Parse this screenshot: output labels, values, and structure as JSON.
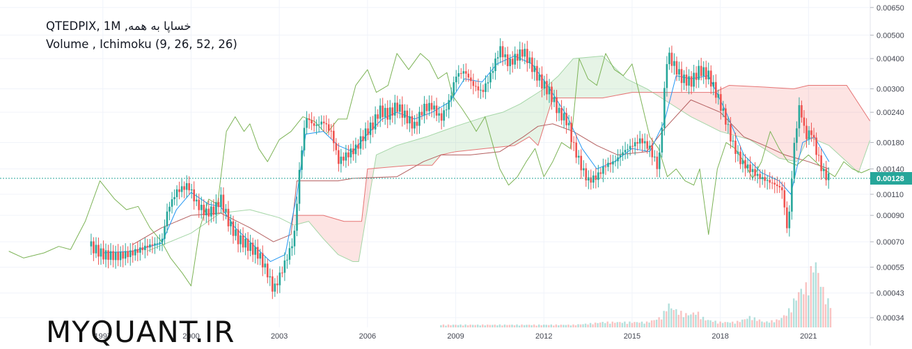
{
  "legend": {
    "title": "خساپا به همه, QTEDPIX, 1M",
    "indicators": "Volume , Ichimoku (9, 26, 52, 26)"
  },
  "watermark": "MYQUANT.IR",
  "colors": {
    "up": "#26a69a",
    "down": "#ef5350",
    "tenkan": "#2196f3",
    "kijun": "#b45f5f",
    "lagging": "#7cb356",
    "span_a": "#a5d6a7",
    "span_b": "#e57373",
    "cloud_bull": "rgba(76,175,80,0.14)",
    "cloud_bear": "rgba(244,67,54,0.14)",
    "price_line": "#26a69a",
    "grid": "#f0f3fa"
  },
  "chart_data": {
    "type": "candlestick",
    "y_scale": "log",
    "y_ticks": [
      "0.00650",
      "0.00500",
      "0.00400",
      "0.00300",
      "0.00240",
      "0.00180",
      "0.00140",
      "0.00128",
      "0.00110",
      "0.00090",
      "0.00070",
      "0.00055",
      "0.00043",
      "0.00034"
    ],
    "x_ticks": [
      "1997",
      "2000",
      "2003",
      "2006",
      "2009",
      "2012",
      "2015",
      "2018",
      "2021"
    ],
    "y_range": [
      0.00031,
      0.0068
    ],
    "x_range": [
      1993.5,
      2023.1
    ],
    "last_price": "0.00128",
    "close_series": [
      [
        1996.6,
        0.00067
      ],
      [
        1997.0,
        0.00062
      ],
      [
        1997.5,
        0.00061
      ],
      [
        1998.0,
        0.00063
      ],
      [
        1998.5,
        0.00067
      ],
      [
        1999.0,
        0.0007
      ],
      [
        1999.2,
        0.00095
      ],
      [
        1999.5,
        0.00113
      ],
      [
        1999.9,
        0.0012
      ],
      [
        2000.2,
        0.001
      ],
      [
        2000.5,
        0.00092
      ],
      [
        2000.8,
        0.00095
      ],
      [
        2001.0,
        0.00106
      ],
      [
        2001.3,
        0.00083
      ],
      [
        2001.6,
        0.00072
      ],
      [
        2001.9,
        0.00068
      ],
      [
        2002.3,
        0.00062
      ],
      [
        2002.6,
        0.00052
      ],
      [
        2002.8,
        0.00044
      ],
      [
        2003.0,
        0.0005
      ],
      [
        2003.3,
        0.00062
      ],
      [
        2003.5,
        0.00072
      ],
      [
        2003.7,
        0.00145
      ],
      [
        2003.9,
        0.0023
      ],
      [
        2004.2,
        0.0021
      ],
      [
        2004.5,
        0.0022
      ],
      [
        2004.8,
        0.00195
      ],
      [
        2005.0,
        0.0015
      ],
      [
        2005.3,
        0.0016
      ],
      [
        2005.6,
        0.0017
      ],
      [
        2005.9,
        0.00195
      ],
      [
        2006.2,
        0.00215
      ],
      [
        2006.4,
        0.00245
      ],
      [
        2006.7,
        0.00235
      ],
      [
        2007.0,
        0.00255
      ],
      [
        2007.3,
        0.0023
      ],
      [
        2007.6,
        0.0021
      ],
      [
        2007.9,
        0.0025
      ],
      [
        2008.2,
        0.00255
      ],
      [
        2008.5,
        0.00225
      ],
      [
        2008.8,
        0.0027
      ],
      [
        2009.0,
        0.0034
      ],
      [
        2009.3,
        0.00355
      ],
      [
        2009.6,
        0.0031
      ],
      [
        2009.9,
        0.0029
      ],
      [
        2010.2,
        0.00345
      ],
      [
        2010.5,
        0.0044
      ],
      [
        2010.8,
        0.0038
      ],
      [
        2011.0,
        0.004
      ],
      [
        2011.3,
        0.0043
      ],
      [
        2011.6,
        0.0037
      ],
      [
        2011.9,
        0.0032
      ],
      [
        2012.2,
        0.0029
      ],
      [
        2012.5,
        0.0024
      ],
      [
        2012.8,
        0.0022
      ],
      [
        2013.0,
        0.00175
      ],
      [
        2013.3,
        0.0014
      ],
      [
        2013.5,
        0.00125
      ],
      [
        2013.8,
        0.0013
      ],
      [
        2014.1,
        0.00145
      ],
      [
        2014.4,
        0.0015
      ],
      [
        2014.7,
        0.00165
      ],
      [
        2015.0,
        0.00175
      ],
      [
        2015.3,
        0.00185
      ],
      [
        2015.6,
        0.0017
      ],
      [
        2015.9,
        0.0014
      ],
      [
        2016.2,
        0.0042
      ],
      [
        2016.4,
        0.0038
      ],
      [
        2016.7,
        0.0033
      ],
      [
        2017.0,
        0.0032
      ],
      [
        2017.3,
        0.0036
      ],
      [
        2017.6,
        0.0034
      ],
      [
        2017.9,
        0.0028
      ],
      [
        2018.2,
        0.0022
      ],
      [
        2018.4,
        0.0018
      ],
      [
        2018.7,
        0.0015
      ],
      [
        2019.0,
        0.0014
      ],
      [
        2019.3,
        0.0013
      ],
      [
        2019.6,
        0.00125
      ],
      [
        2019.9,
        0.0012
      ],
      [
        2020.1,
        0.00115
      ],
      [
        2020.3,
        0.00075
      ],
      [
        2020.5,
        0.0017
      ],
      [
        2020.7,
        0.0026
      ],
      [
        2020.9,
        0.0019
      ],
      [
        2021.1,
        0.002
      ],
      [
        2021.3,
        0.0016
      ],
      [
        2021.5,
        0.00135
      ],
      [
        2021.7,
        0.00128
      ]
    ],
    "tenkan": [
      [
        1997.0,
        0.00063
      ],
      [
        1998.0,
        0.00064
      ],
      [
        1999.0,
        0.00069
      ],
      [
        1999.5,
        0.00095
      ],
      [
        2000.0,
        0.00112
      ],
      [
        2000.6,
        0.001
      ],
      [
        2001.0,
        0.00098
      ],
      [
        2001.5,
        0.0008
      ],
      [
        2002.0,
        0.0007
      ],
      [
        2002.7,
        0.00058
      ],
      [
        2003.2,
        0.00062
      ],
      [
        2003.6,
        0.0011
      ],
      [
        2003.9,
        0.00195
      ],
      [
        2004.5,
        0.002
      ],
      [
        2005.0,
        0.00175
      ],
      [
        2005.5,
        0.00165
      ],
      [
        2006.0,
        0.00195
      ],
      [
        2006.5,
        0.00225
      ],
      [
        2007.0,
        0.0024
      ],
      [
        2007.6,
        0.00225
      ],
      [
        2008.2,
        0.0024
      ],
      [
        2008.8,
        0.00265
      ],
      [
        2009.3,
        0.0033
      ],
      [
        2009.9,
        0.0032
      ],
      [
        2010.4,
        0.0038
      ],
      [
        2011.0,
        0.0041
      ],
      [
        2011.6,
        0.0038
      ],
      [
        2012.2,
        0.003
      ],
      [
        2012.8,
        0.0023
      ],
      [
        2013.3,
        0.0017
      ],
      [
        2013.8,
        0.0014
      ],
      [
        2014.4,
        0.0015
      ],
      [
        2015.0,
        0.0017
      ],
      [
        2015.6,
        0.00165
      ],
      [
        2016.1,
        0.0022
      ],
      [
        2016.5,
        0.0034
      ],
      [
        2017.0,
        0.0033
      ],
      [
        2017.6,
        0.0034
      ],
      [
        2018.2,
        0.0024
      ],
      [
        2018.8,
        0.0016
      ],
      [
        2019.4,
        0.00135
      ],
      [
        2020.0,
        0.00125
      ],
      [
        2020.4,
        0.0011
      ],
      [
        2020.8,
        0.0018
      ],
      [
        2021.2,
        0.0019
      ],
      [
        2021.7,
        0.0015
      ]
    ],
    "kijun": [
      [
        1998.0,
        0.00068
      ],
      [
        1999.0,
        0.0008
      ],
      [
        2000.0,
        0.0009
      ],
      [
        2001.0,
        0.00092
      ],
      [
        2002.0,
        0.0008
      ],
      [
        2002.8,
        0.0007
      ],
      [
        2003.4,
        0.00075
      ],
      [
        2003.6,
        0.00125
      ],
      [
        2005.0,
        0.00125
      ],
      [
        2005.5,
        0.00128
      ],
      [
        2007.0,
        0.0013
      ],
      [
        2007.9,
        0.0015
      ],
      [
        2008.5,
        0.0016
      ],
      [
        2009.5,
        0.0016
      ],
      [
        2010.5,
        0.00165
      ],
      [
        2011.3,
        0.0019
      ],
      [
        2011.8,
        0.0021
      ],
      [
        2012.3,
        0.00215
      ],
      [
        2013.0,
        0.002
      ],
      [
        2013.8,
        0.00175
      ],
      [
        2014.5,
        0.0016
      ],
      [
        2015.5,
        0.00165
      ],
      [
        2016.1,
        0.00205
      ],
      [
        2017.0,
        0.0027
      ],
      [
        2018.0,
        0.0024
      ],
      [
        2018.8,
        0.0019
      ],
      [
        2019.5,
        0.00175
      ],
      [
        2020.2,
        0.0016
      ],
      [
        2021.0,
        0.0015
      ],
      [
        2021.7,
        0.0014
      ]
    ],
    "span_a": [
      [
        1998.5,
        0.00064
      ],
      [
        2000.0,
        0.00076
      ],
      [
        2001.0,
        0.00092
      ],
      [
        2002.0,
        0.00095
      ],
      [
        2003.0,
        0.00088
      ],
      [
        2003.5,
        0.00082
      ],
      [
        2004.0,
        0.00085
      ],
      [
        2004.5,
        0.00072
      ],
      [
        2005.0,
        0.00062
      ],
      [
        2005.5,
        0.00058
      ],
      [
        2005.7,
        0.00058
      ],
      [
        2006.3,
        0.0016
      ],
      [
        2007.0,
        0.00175
      ],
      [
        2008.0,
        0.0019
      ],
      [
        2009.0,
        0.0021
      ],
      [
        2010.0,
        0.0023
      ],
      [
        2010.6,
        0.0024
      ],
      [
        2011.2,
        0.0026
      ],
      [
        2012.0,
        0.003
      ],
      [
        2012.5,
        0.0034
      ],
      [
        2013.0,
        0.004
      ],
      [
        2014.0,
        0.0041
      ],
      [
        2014.8,
        0.0033
      ],
      [
        2015.5,
        0.003
      ],
      [
        2016.1,
        0.0027
      ],
      [
        2017.0,
        0.0023
      ],
      [
        2018.0,
        0.002
      ],
      [
        2019.0,
        0.00185
      ],
      [
        2020.0,
        0.00155
      ],
      [
        2020.6,
        0.0015
      ],
      [
        2021.0,
        0.0019
      ],
      [
        2021.7,
        0.00175
      ],
      [
        2022.3,
        0.0015
      ],
      [
        2022.7,
        0.00135
      ],
      [
        2023.1,
        0.00185
      ]
    ],
    "span_b": [
      [
        2003.5,
        0.0009
      ],
      [
        2004.5,
        0.0009
      ],
      [
        2005.2,
        0.00085
      ],
      [
        2005.8,
        0.00085
      ],
      [
        2006.0,
        0.0014
      ],
      [
        2007.5,
        0.00145
      ],
      [
        2008.2,
        0.00145
      ],
      [
        2008.5,
        0.0016
      ],
      [
        2009.0,
        0.00165
      ],
      [
        2010.0,
        0.0017
      ],
      [
        2011.0,
        0.00175
      ],
      [
        2011.5,
        0.0019
      ],
      [
        2011.8,
        0.00175
      ],
      [
        2012.3,
        0.00275
      ],
      [
        2014.0,
        0.00275
      ],
      [
        2015.0,
        0.0029
      ],
      [
        2016.0,
        0.0029
      ],
      [
        2017.0,
        0.0029
      ],
      [
        2017.8,
        0.0029
      ],
      [
        2018.3,
        0.0031
      ],
      [
        2019.5,
        0.00305
      ],
      [
        2020.5,
        0.003
      ],
      [
        2021.0,
        0.0031
      ],
      [
        2022.3,
        0.0031
      ],
      [
        2023.1,
        0.0022
      ]
    ],
    "lagging": [
      [
        1993.8,
        0.00064
      ],
      [
        1994.3,
        0.0006
      ],
      [
        1995.0,
        0.00063
      ],
      [
        1995.5,
        0.00067
      ],
      [
        1995.9,
        0.00065
      ],
      [
        1996.4,
        0.00085
      ],
      [
        1996.9,
        0.00125
      ],
      [
        1997.4,
        0.00105
      ],
      [
        1997.8,
        0.00095
      ],
      [
        1998.2,
        0.00098
      ],
      [
        1998.6,
        0.0008
      ],
      [
        1999.0,
        0.0007
      ],
      [
        1999.3,
        0.0006
      ],
      [
        1999.7,
        0.00052
      ],
      [
        2000.0,
        0.00046
      ],
      [
        2000.3,
        0.0008
      ],
      [
        2000.6,
        0.00105
      ],
      [
        2000.9,
        0.001
      ],
      [
        2001.2,
        0.002
      ],
      [
        2001.5,
        0.0023
      ],
      [
        2001.8,
        0.002
      ],
      [
        2002.0,
        0.00215
      ],
      [
        2002.3,
        0.0017
      ],
      [
        2002.6,
        0.0015
      ],
      [
        2003.0,
        0.00185
      ],
      [
        2003.4,
        0.002
      ],
      [
        2003.8,
        0.0023
      ],
      [
        2004.2,
        0.0022
      ],
      [
        2004.6,
        0.00195
      ],
      [
        2005.0,
        0.00225
      ],
      [
        2005.3,
        0.00225
      ],
      [
        2005.6,
        0.0031
      ],
      [
        2006.0,
        0.0036
      ],
      [
        2006.3,
        0.0029
      ],
      [
        2006.7,
        0.0031
      ],
      [
        2007.0,
        0.0042
      ],
      [
        2007.4,
        0.0036
      ],
      [
        2007.8,
        0.0042
      ],
      [
        2008.1,
        0.0039
      ],
      [
        2008.4,
        0.0033
      ],
      [
        2008.7,
        0.0035
      ],
      [
        2008.9,
        0.0028
      ],
      [
        2009.2,
        0.0025
      ],
      [
        2009.5,
        0.0022
      ],
      [
        2009.7,
        0.002
      ],
      [
        2010.0,
        0.0023
      ],
      [
        2010.3,
        0.0017
      ],
      [
        2010.5,
        0.0014
      ],
      [
        2010.8,
        0.0012
      ],
      [
        2011.1,
        0.0013
      ],
      [
        2011.4,
        0.0015
      ],
      [
        2011.7,
        0.0017
      ],
      [
        2012.0,
        0.0013
      ],
      [
        2012.3,
        0.0015
      ],
      [
        2012.6,
        0.0018
      ],
      [
        2012.9,
        0.0017
      ],
      [
        2013.2,
        0.004
      ],
      [
        2013.5,
        0.0033
      ],
      [
        2013.8,
        0.0031
      ],
      [
        2014.1,
        0.0042
      ],
      [
        2014.4,
        0.0036
      ],
      [
        2014.7,
        0.0034
      ],
      [
        2015.0,
        0.0038
      ],
      [
        2015.3,
        0.0027
      ],
      [
        2015.6,
        0.0019
      ],
      [
        2015.9,
        0.0017
      ],
      [
        2016.2,
        0.0013
      ],
      [
        2016.5,
        0.0014
      ],
      [
        2016.8,
        0.00125
      ],
      [
        2017.1,
        0.0012
      ],
      [
        2017.3,
        0.0014
      ],
      [
        2017.6,
        0.00075
      ],
      [
        2017.9,
        0.0014
      ],
      [
        2018.2,
        0.0018
      ],
      [
        2018.5,
        0.0017
      ],
      [
        2018.8,
        0.0015
      ],
      [
        2019.1,
        0.00128
      ],
      [
        2019.4,
        0.0015
      ],
      [
        2019.7,
        0.002
      ],
      [
        2020.0,
        0.0017
      ],
      [
        2020.3,
        0.0015
      ],
      [
        2020.6,
        0.00145
      ],
      [
        2021.0,
        0.0016
      ],
      [
        2021.5,
        0.0014
      ],
      [
        2021.9,
        0.0013
      ],
      [
        2022.2,
        0.0015
      ],
      [
        2022.5,
        0.0014
      ],
      [
        2022.8,
        0.00135
      ],
      [
        2023.1,
        0.0014
      ]
    ],
    "volume": [
      [
        2009.0,
        1
      ],
      [
        2010.0,
        1
      ],
      [
        2011.0,
        1
      ],
      [
        2012.0,
        1
      ],
      [
        2013.0,
        1
      ],
      [
        2014.0,
        2
      ],
      [
        2015.0,
        2
      ],
      [
        2015.5,
        2
      ],
      [
        2016.0,
        4
      ],
      [
        2016.2,
        9
      ],
      [
        2016.4,
        7
      ],
      [
        2016.6,
        6
      ],
      [
        2016.8,
        5
      ],
      [
        2017.0,
        5
      ],
      [
        2017.2,
        6
      ],
      [
        2017.5,
        3
      ],
      [
        2018.0,
        2
      ],
      [
        2018.5,
        2
      ],
      [
        2018.8,
        3
      ],
      [
        2019.0,
        4
      ],
      [
        2019.3,
        3
      ],
      [
        2019.5,
        2
      ],
      [
        2020.0,
        3
      ],
      [
        2020.3,
        6
      ],
      [
        2020.5,
        10
      ],
      [
        2020.7,
        14
      ],
      [
        2020.9,
        15
      ],
      [
        2021.0,
        18
      ],
      [
        2021.2,
        26
      ],
      [
        2021.3,
        22
      ],
      [
        2021.4,
        18
      ],
      [
        2021.5,
        14
      ],
      [
        2021.6,
        12
      ],
      [
        2021.7,
        9
      ]
    ]
  }
}
